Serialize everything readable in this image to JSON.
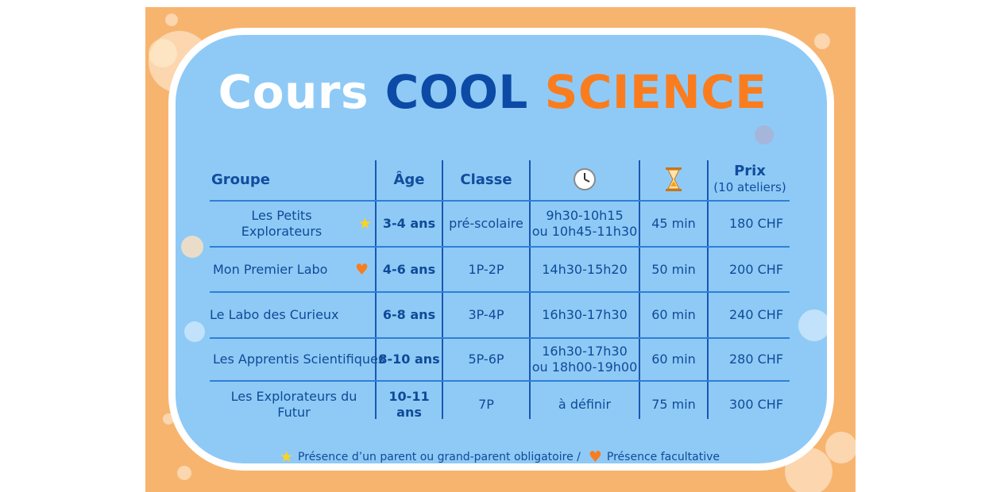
{
  "title": {
    "part1": "Cours",
    "part2": "COOL",
    "part3": "SCIENCE"
  },
  "colors": {
    "frame": "#f7b46e",
    "panel": "#8fcaf6",
    "dark_blue": "#0c4aa6",
    "orange": "#f97d1f",
    "star": "#ffd21e"
  },
  "headers": {
    "groupe": "Groupe",
    "age": "Âge",
    "classe": "Classe",
    "time_icon": "clock-icon",
    "duration_icon": "hourglass-icon",
    "prix": "Prix",
    "prix_sub": "(10 ateliers)"
  },
  "rows": [
    {
      "groupe": "Les Petits Explorateurs",
      "badge": "star-icon",
      "age": "3-4 ans",
      "classe": "pré-scolaire",
      "horaire_1": "9h30-10h15",
      "horaire_2": "ou 10h45-11h30",
      "duree": "45 min",
      "prix": "180 CHF"
    },
    {
      "groupe": "Mon Premier Labo",
      "badge": "heart-icon",
      "age": "4-6 ans",
      "classe": "1P-2P",
      "horaire_1": "14h30-15h20",
      "horaire_2": "",
      "duree": "50 min",
      "prix": "200 CHF"
    },
    {
      "groupe": "Le Labo des Curieux",
      "badge": "",
      "age": "6-8 ans",
      "classe": "3P-4P",
      "horaire_1": "16h30-17h30",
      "horaire_2": "",
      "duree": "60 min",
      "prix": "240 CHF"
    },
    {
      "groupe": "Les Apprentis Scientifiques",
      "badge": "",
      "age": "8-10 ans",
      "classe": "5P-6P",
      "horaire_1": "16h30-17h30",
      "horaire_2": "ou 18h00-19h00",
      "duree": "60 min",
      "prix": "280 CHF"
    },
    {
      "groupe": "Les Explorateurs du Futur",
      "badge": "",
      "age": "10-11 ans",
      "classe": "7P",
      "horaire_1": "à définir",
      "horaire_2": "",
      "duree": "75 min",
      "prix": "300 CHF"
    }
  ],
  "legend": {
    "star_text": "Présence d’un parent ou grand-parent obligatoire /",
    "heart_text": "Présence facultative"
  }
}
